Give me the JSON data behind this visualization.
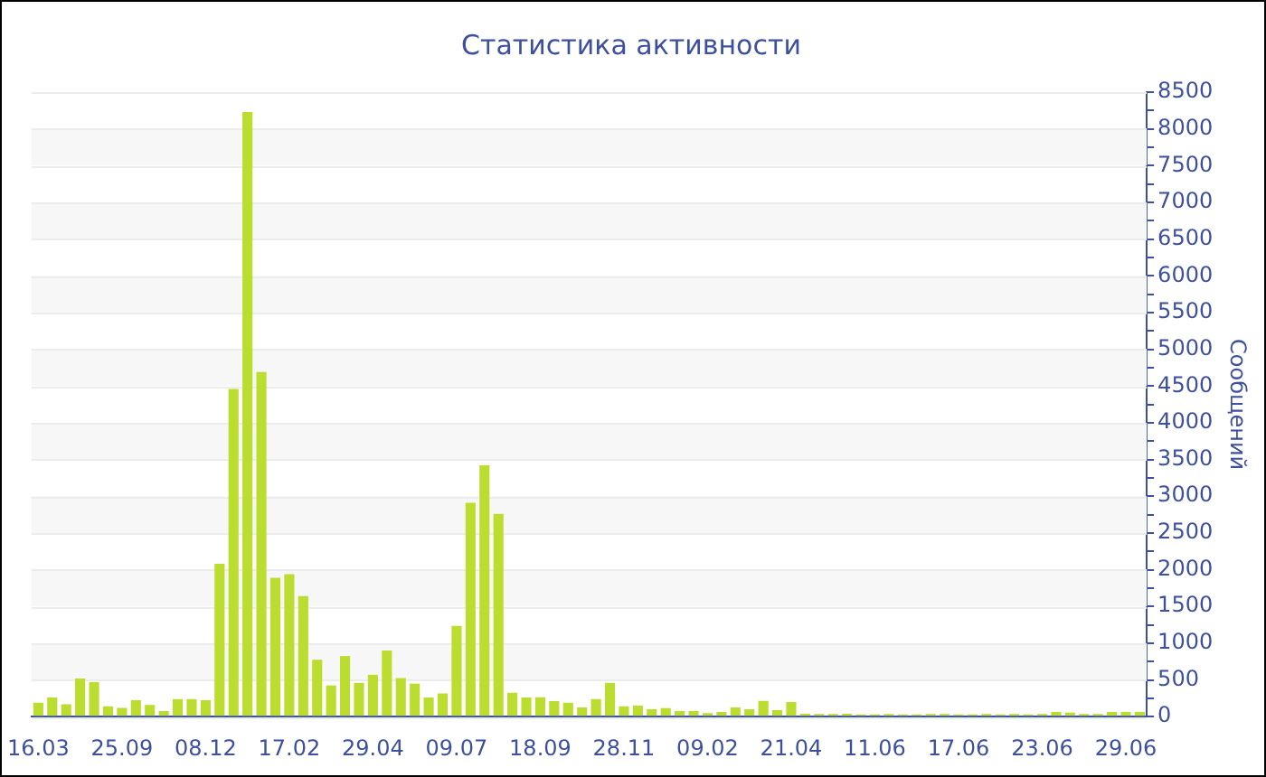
{
  "chart_data": {
    "type": "bar",
    "title": "Статистика активности",
    "ylabel": "Сообщений",
    "categories": [
      "16.03",
      null,
      null,
      null,
      null,
      null,
      "25.09",
      null,
      null,
      null,
      null,
      null,
      "08.12",
      null,
      null,
      null,
      null,
      null,
      "17.02",
      null,
      null,
      null,
      null,
      null,
      "29.04",
      null,
      null,
      null,
      null,
      null,
      "09.07",
      null,
      null,
      null,
      null,
      null,
      "18.09",
      null,
      null,
      null,
      null,
      null,
      "28.11",
      null,
      null,
      null,
      null,
      null,
      "09.02",
      null,
      null,
      null,
      null,
      null,
      "21.04",
      null,
      null,
      null,
      null,
      null,
      "11.06",
      null,
      null,
      null,
      null,
      null,
      "17.06",
      null,
      null,
      null,
      null,
      null,
      "23.06",
      null,
      null,
      null,
      null,
      null,
      "29.06",
      null
    ],
    "values": [
      190,
      260,
      170,
      520,
      470,
      140,
      120,
      225,
      160,
      75,
      240,
      240,
      225,
      2080,
      4460,
      8230,
      4690,
      1890,
      1940,
      1640,
      775,
      425,
      825,
      460,
      570,
      900,
      525,
      450,
      260,
      315,
      1235,
      2910,
      3420,
      2760,
      325,
      260,
      265,
      210,
      190,
      125,
      240,
      460,
      140,
      150,
      100,
      115,
      75,
      75,
      50,
      65,
      125,
      100,
      215,
      90,
      200,
      40,
      35,
      35,
      40,
      30,
      30,
      35,
      30,
      30,
      35,
      35,
      30,
      30,
      35,
      30,
      35,
      30,
      35,
      65,
      55,
      35,
      35,
      65,
      65,
      65
    ],
    "color": "#bbdd2f",
    "ylim": [
      0,
      8500
    ],
    "yticks": [
      0,
      {
        "value": 250,
        "label": null
      },
      500,
      {
        "value": 750,
        "label": null
      },
      1000,
      {
        "value": 1250,
        "label": null
      },
      1500,
      {
        "value": 1750,
        "label": null
      },
      2000,
      {
        "value": 2250,
        "label": null
      },
      2500,
      {
        "value": 2750,
        "label": null
      },
      3000,
      {
        "value": 3250,
        "label": null
      },
      3500,
      {
        "value": 3750,
        "label": null
      },
      4000,
      {
        "value": 4250,
        "label": null
      },
      4500,
      {
        "value": 4750,
        "label": null
      },
      5000,
      {
        "value": 5250,
        "label": null
      },
      5500,
      {
        "value": 5750,
        "label": null
      },
      6000,
      {
        "value": 6250,
        "label": null
      },
      6500,
      {
        "value": 6750,
        "label": null
      },
      7000,
      {
        "value": 7250,
        "label": null
      },
      7500,
      {
        "value": 7750,
        "label": null
      },
      8000,
      {
        "value": 8250,
        "label": null
      },
      8500
    ],
    "grid": "y"
  }
}
